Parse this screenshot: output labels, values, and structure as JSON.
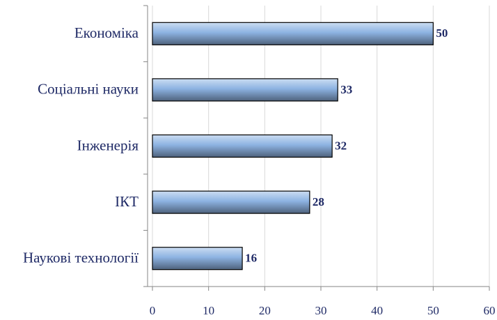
{
  "chart_data": {
    "type": "bar",
    "orientation": "horizontal",
    "categories": [
      "Економіка",
      "Соціальні науки",
      "Інженерія",
      "ІКТ",
      "Наукові технології"
    ],
    "values": [
      50,
      33,
      32,
      28,
      16
    ],
    "color": "#8db3e2",
    "xlim": [
      0,
      60
    ],
    "xticks": [
      0,
      10,
      20,
      30,
      40,
      50,
      60
    ],
    "grid": true
  }
}
